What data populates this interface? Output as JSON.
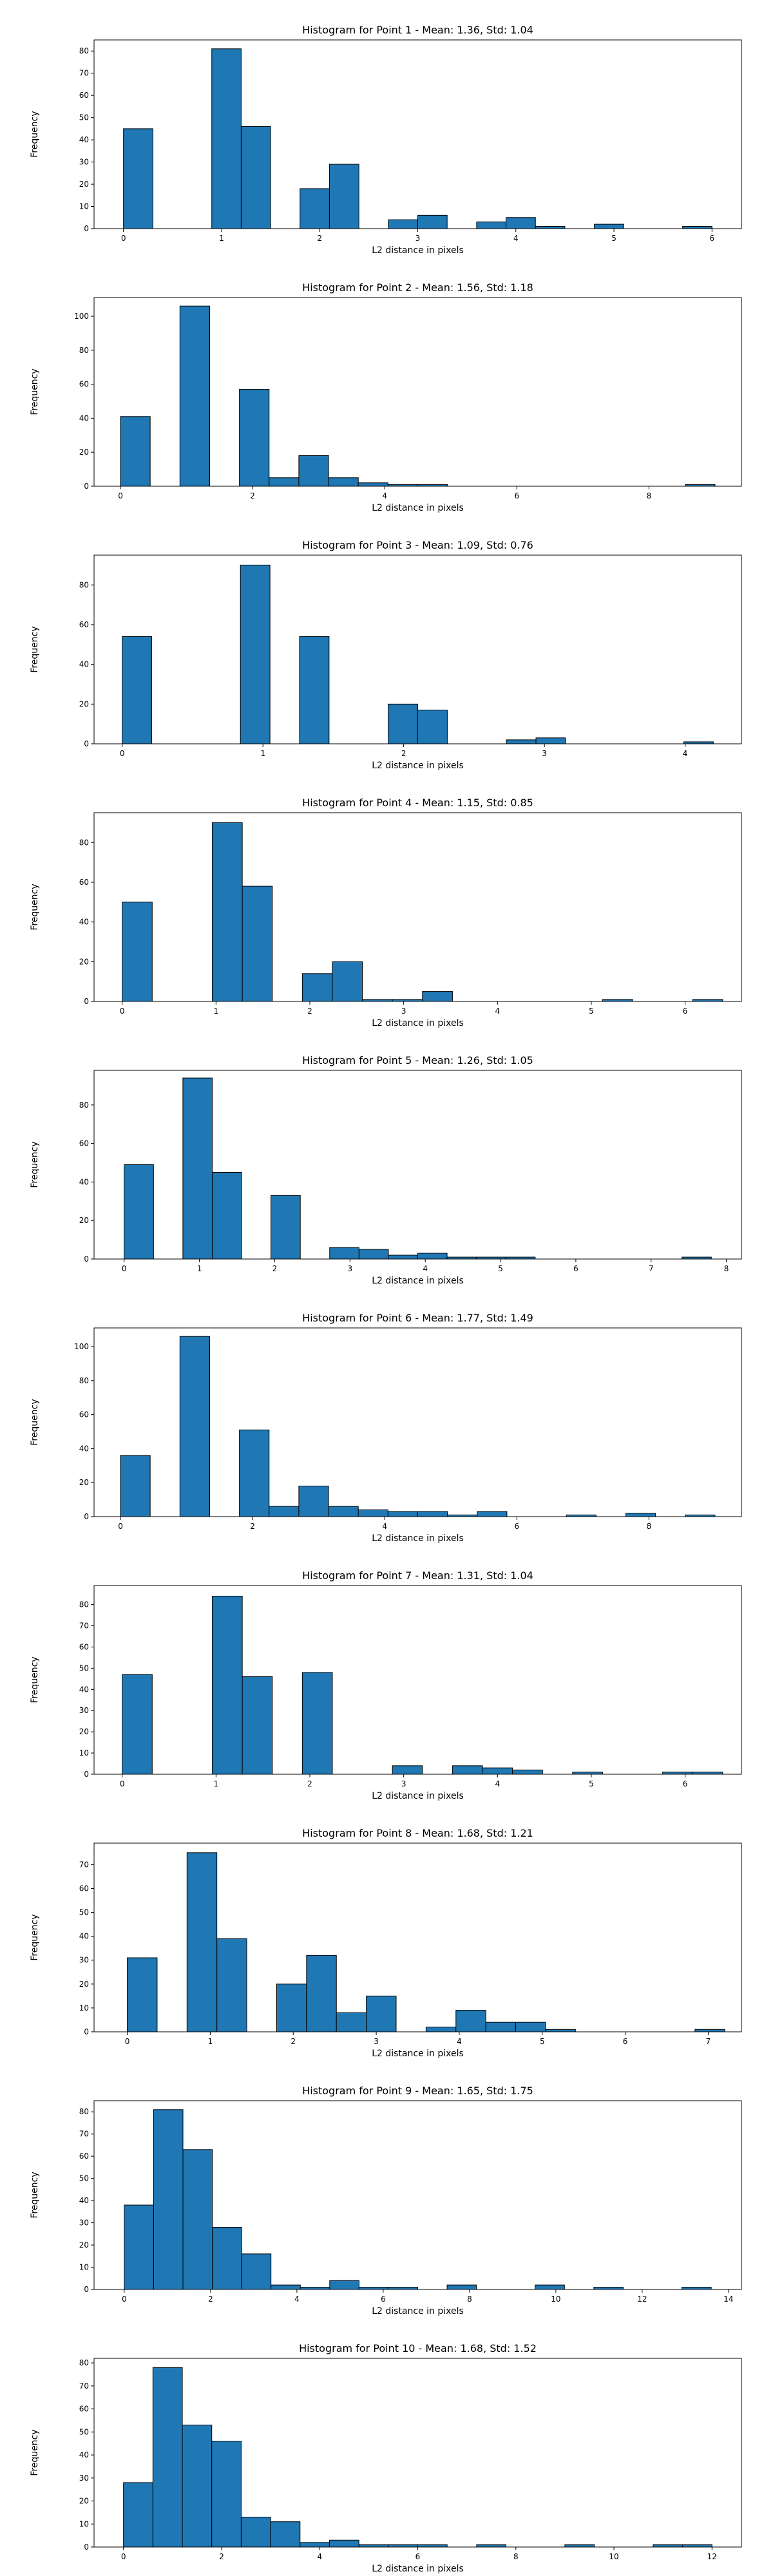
{
  "colors": {
    "bar_fill": "#1f77b4",
    "bar_edge": "#000000",
    "axes": "#000000",
    "background": "#ffffff"
  },
  "chart_data": [
    {
      "type": "bar",
      "title": "Histogram for Point 1 - Mean: 1.36, Std: 1.04",
      "xlabel": "L2 distance in pixels",
      "ylabel": "Frequency",
      "xlim": [
        -0.3,
        6.3
      ],
      "ylim": [
        0,
        85
      ],
      "xticks": [
        0,
        1,
        2,
        3,
        4,
        5,
        6
      ],
      "yticks": [
        0,
        10,
        20,
        30,
        40,
        50,
        60,
        70,
        80
      ],
      "bin_edges": [
        0,
        0.3,
        0.6,
        0.9,
        1.2,
        1.5,
        1.8,
        2.1,
        2.4,
        2.7,
        3.0,
        3.3,
        3.6,
        3.9,
        4.2,
        4.5,
        4.8,
        5.1,
        5.4,
        5.7,
        6.0
      ],
      "values": [
        45,
        0,
        0,
        81,
        46,
        0,
        18,
        29,
        0,
        4,
        6,
        0,
        3,
        5,
        1,
        0,
        2,
        0,
        0,
        1
      ]
    },
    {
      "type": "bar",
      "title": "Histogram for Point 2 - Mean: 1.56, Std: 1.18",
      "xlabel": "L2 distance in pixels",
      "ylabel": "Frequency",
      "xlim": [
        -0.4,
        9.4
      ],
      "ylim": [
        0,
        111
      ],
      "xticks": [
        0,
        2,
        4,
        6,
        8
      ],
      "yticks": [
        0,
        20,
        40,
        60,
        80,
        100
      ],
      "bin_edges": [
        0,
        0.45,
        0.9,
        1.35,
        1.8,
        2.25,
        2.7,
        3.15,
        3.6,
        4.05,
        4.5,
        4.95,
        5.4,
        5.85,
        6.3,
        6.75,
        7.2,
        7.65,
        8.1,
        8.55,
        9.0
      ],
      "values": [
        41,
        0,
        106,
        0,
        57,
        5,
        18,
        5,
        2,
        1,
        1,
        0,
        0,
        0,
        0,
        0,
        0,
        0,
        0,
        1
      ]
    },
    {
      "type": "bar",
      "title": "Histogram for Point 3 - Mean: 1.09, Std: 0.76",
      "xlabel": "L2 distance in pixels",
      "ylabel": "Frequency",
      "xlim": [
        -0.2,
        4.4
      ],
      "ylim": [
        0,
        95
      ],
      "xticks": [
        0,
        1,
        2,
        3,
        4
      ],
      "yticks": [
        0,
        20,
        40,
        60,
        80
      ],
      "bin_edges": [
        0,
        0.21,
        0.42,
        0.63,
        0.84,
        1.05,
        1.26,
        1.47,
        1.68,
        1.89,
        2.1,
        2.31,
        2.52,
        2.73,
        2.94,
        3.15,
        3.36,
        3.57,
        3.78,
        3.99,
        4.2
      ],
      "values": [
        54,
        0,
        0,
        0,
        90,
        0,
        54,
        0,
        0,
        20,
        17,
        0,
        0,
        2,
        3,
        0,
        0,
        0,
        0,
        1
      ]
    },
    {
      "type": "bar",
      "title": "Histogram for Point 4 - Mean: 1.15, Std: 0.85",
      "xlabel": "L2 distance in pixels",
      "ylabel": "Frequency",
      "xlim": [
        -0.3,
        6.6
      ],
      "ylim": [
        0,
        95
      ],
      "xticks": [
        0,
        1,
        2,
        3,
        4,
        5,
        6
      ],
      "yticks": [
        0,
        20,
        40,
        60,
        80
      ],
      "bin_edges": [
        0,
        0.32,
        0.64,
        0.96,
        1.28,
        1.6,
        1.92,
        2.24,
        2.56,
        2.88,
        3.2,
        3.52,
        3.84,
        4.16,
        4.48,
        4.8,
        5.12,
        5.44,
        5.76,
        6.08,
        6.4
      ],
      "values": [
        50,
        0,
        0,
        90,
        58,
        0,
        14,
        20,
        1,
        1,
        5,
        0,
        0,
        0,
        0,
        0,
        1,
        0,
        0,
        1
      ]
    },
    {
      "type": "bar",
      "title": "Histogram for Point 5 - Mean: 1.26, Std: 1.05",
      "xlabel": "L2 distance in pixels",
      "ylabel": "Frequency",
      "xlim": [
        -0.4,
        8.2
      ],
      "ylim": [
        0,
        98
      ],
      "xticks": [
        0,
        1,
        2,
        3,
        4,
        5,
        6,
        7,
        8
      ],
      "yticks": [
        0,
        20,
        40,
        60,
        80
      ],
      "bin_edges": [
        0,
        0.39,
        0.78,
        1.17,
        1.56,
        1.95,
        2.34,
        2.73,
        3.12,
        3.51,
        3.9,
        4.29,
        4.68,
        5.07,
        5.46,
        5.85,
        6.24,
        6.63,
        7.02,
        7.41,
        7.8
      ],
      "values": [
        49,
        0,
        94,
        45,
        0,
        33,
        0,
        6,
        5,
        2,
        3,
        1,
        1,
        1,
        0,
        0,
        0,
        0,
        0,
        1
      ]
    },
    {
      "type": "bar",
      "title": "Histogram for Point 6 - Mean: 1.77, Std: 1.49",
      "xlabel": "L2 distance in pixels",
      "ylabel": "Frequency",
      "xlim": [
        -0.4,
        9.4
      ],
      "ylim": [
        0,
        111
      ],
      "xticks": [
        0,
        2,
        4,
        6,
        8
      ],
      "yticks": [
        0,
        20,
        40,
        60,
        80,
        100
      ],
      "bin_edges": [
        0,
        0.45,
        0.9,
        1.35,
        1.8,
        2.25,
        2.7,
        3.15,
        3.6,
        4.05,
        4.5,
        4.95,
        5.4,
        5.85,
        6.3,
        6.75,
        7.2,
        7.65,
        8.1,
        8.55,
        9.0
      ],
      "values": [
        36,
        0,
        106,
        0,
        51,
        6,
        18,
        6,
        4,
        3,
        3,
        1,
        3,
        0,
        0,
        1,
        0,
        2,
        0,
        1
      ]
    },
    {
      "type": "bar",
      "title": "Histogram for Point 7 - Mean: 1.31, Std: 1.04",
      "xlabel": "L2 distance in pixels",
      "ylabel": "Frequency",
      "xlim": [
        -0.3,
        6.6
      ],
      "ylim": [
        0,
        89
      ],
      "xticks": [
        0,
        1,
        2,
        3,
        4,
        5,
        6
      ],
      "yticks": [
        0,
        10,
        20,
        30,
        40,
        50,
        60,
        70,
        80
      ],
      "bin_edges": [
        0,
        0.32,
        0.64,
        0.96,
        1.28,
        1.6,
        1.92,
        2.24,
        2.56,
        2.88,
        3.2,
        3.52,
        3.84,
        4.16,
        4.48,
        4.8,
        5.12,
        5.44,
        5.76,
        6.08,
        6.4
      ],
      "values": [
        47,
        0,
        0,
        84,
        46,
        0,
        48,
        0,
        0,
        4,
        0,
        4,
        3,
        2,
        0,
        1,
        0,
        0,
        1,
        1
      ]
    },
    {
      "type": "bar",
      "title": "Histogram for Point 8 - Mean: 1.68, Std: 1.21",
      "xlabel": "L2 distance in pixels",
      "ylabel": "Frequency",
      "xlim": [
        -0.4,
        7.4
      ],
      "ylim": [
        0,
        79
      ],
      "xticks": [
        0,
        1,
        2,
        3,
        4,
        5,
        6,
        7
      ],
      "yticks": [
        0,
        10,
        20,
        30,
        40,
        50,
        60,
        70
      ],
      "bin_edges": [
        0,
        0.36,
        0.72,
        1.08,
        1.44,
        1.8,
        2.16,
        2.52,
        2.88,
        3.24,
        3.6,
        3.96,
        4.32,
        4.68,
        5.04,
        5.4,
        5.76,
        6.12,
        6.48,
        6.84,
        7.2
      ],
      "values": [
        31,
        0,
        75,
        39,
        0,
        20,
        32,
        8,
        15,
        0,
        2,
        9,
        4,
        4,
        1,
        0,
        0,
        0,
        0,
        1
      ]
    },
    {
      "type": "bar",
      "title": "Histogram for Point 9 - Mean: 1.65, Std: 1.75",
      "xlabel": "L2 distance in pixels",
      "ylabel": "Frequency",
      "xlim": [
        -0.7,
        14.3
      ],
      "ylim": [
        0,
        85
      ],
      "xticks": [
        0,
        2,
        4,
        6,
        8,
        10,
        12,
        14
      ],
      "yticks": [
        0,
        10,
        20,
        30,
        40,
        50,
        60,
        70,
        80
      ],
      "bin_edges": [
        0,
        0.68,
        1.36,
        2.04,
        2.72,
        3.4,
        4.08,
        4.76,
        5.44,
        6.12,
        6.8,
        7.48,
        8.16,
        8.84,
        9.52,
        10.2,
        10.88,
        11.56,
        12.24,
        12.92,
        13.6
      ],
      "values": [
        38,
        81,
        63,
        28,
        16,
        2,
        1,
        4,
        1,
        1,
        0,
        2,
        0,
        0,
        2,
        0,
        1,
        0,
        0,
        1
      ]
    },
    {
      "type": "bar",
      "title": "Histogram for Point 10 - Mean: 1.68, Std: 1.52",
      "xlabel": "L2 distance in pixels",
      "ylabel": "Frequency",
      "xlim": [
        -0.6,
        12.6
      ],
      "ylim": [
        0,
        82
      ],
      "xticks": [
        0,
        2,
        4,
        6,
        8,
        10,
        12
      ],
      "yticks": [
        0,
        10,
        20,
        30,
        40,
        50,
        60,
        70,
        80
      ],
      "bin_edges": [
        0,
        0.6,
        1.2,
        1.8,
        2.4,
        3.0,
        3.6,
        4.2,
        4.8,
        5.4,
        6.0,
        6.6,
        7.2,
        7.8,
        8.4,
        9.0,
        9.6,
        10.2,
        10.8,
        11.4,
        12.0
      ],
      "values": [
        28,
        78,
        53,
        46,
        13,
        11,
        2,
        3,
        1,
        1,
        1,
        0,
        1,
        0,
        0,
        1,
        0,
        0,
        1,
        1
      ]
    }
  ]
}
